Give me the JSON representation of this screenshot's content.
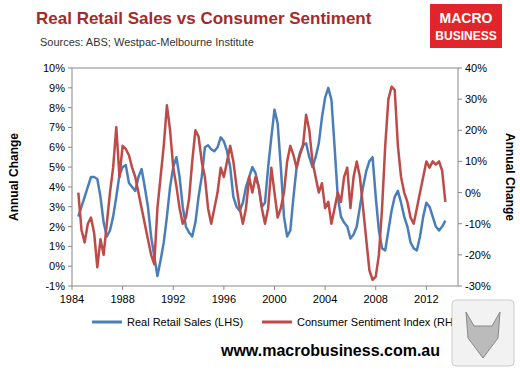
{
  "chart_data": {
    "type": "line",
    "title": "Real Retail Sales vs Consumer Sentiment",
    "subtitle": "Sources: ABS; Westpac-Melbourne Institute",
    "annotations": [
      "MACRO",
      "BUSINESS",
      "www.macrobusiness.com.au"
    ],
    "ylabel": "Annual Change",
    "y2label": "Annual Change",
    "x": [
      1984.5,
      1984.75,
      1985,
      1985.25,
      1985.5,
      1985.75,
      1986,
      1986.25,
      1986.5,
      1986.75,
      1987,
      1987.25,
      1987.5,
      1987.75,
      1988,
      1988.25,
      1988.5,
      1988.75,
      1989,
      1989.25,
      1989.5,
      1989.75,
      1990,
      1990.25,
      1990.5,
      1990.75,
      1991,
      1991.25,
      1991.5,
      1991.75,
      1992,
      1992.25,
      1992.5,
      1992.75,
      1993,
      1993.25,
      1993.5,
      1993.75,
      1994,
      1994.25,
      1994.5,
      1994.75,
      1995,
      1995.25,
      1995.5,
      1995.75,
      1996,
      1996.25,
      1996.5,
      1996.75,
      1997,
      1997.25,
      1997.5,
      1997.75,
      1998,
      1998.25,
      1998.5,
      1998.75,
      1999,
      1999.25,
      1999.5,
      1999.75,
      2000,
      2000.25,
      2000.5,
      2000.75,
      2001,
      2001.25,
      2001.5,
      2001.75,
      2002,
      2002.25,
      2002.5,
      2002.75,
      2003,
      2003.25,
      2003.5,
      2003.75,
      2004,
      2004.25,
      2004.5,
      2004.75,
      2005,
      2005.25,
      2005.5,
      2005.75,
      2006,
      2006.25,
      2006.5,
      2006.75,
      2007,
      2007.25,
      2007.5,
      2007.75,
      2008,
      2008.25,
      2008.5,
      2008.75,
      2009,
      2009.25,
      2009.5,
      2009.75,
      2010,
      2010.25,
      2010.5,
      2010.75,
      2011,
      2011.25,
      2011.5,
      2011.75,
      2012,
      2012.25,
      2012.5,
      2012.75,
      2013,
      2013.25,
      2013.5
    ],
    "series": [
      {
        "name": "Real Retail Sales (LHS)",
        "color": "#4a7ebb",
        "axis": "y",
        "values": [
          2.5,
          3.0,
          3.5,
          4.0,
          4.5,
          4.5,
          4.4,
          3.5,
          2.2,
          1.5,
          1.8,
          2.5,
          3.5,
          4.6,
          5.0,
          5.1,
          4.2,
          4.0,
          3.8,
          4.5,
          4.9,
          4.0,
          3.0,
          1.5,
          0.5,
          -0.5,
          0.3,
          1.2,
          2.5,
          4.0,
          5.0,
          5.5,
          4.5,
          3.0,
          2.0,
          1.7,
          1.5,
          2.2,
          3.5,
          4.5,
          6.0,
          6.1,
          5.9,
          5.8,
          6.0,
          6.5,
          6.3,
          5.8,
          5.0,
          3.5,
          3.0,
          2.8,
          3.2,
          4.0,
          4.5,
          5.0,
          4.7,
          4.0,
          3.0,
          3.2,
          5.0,
          6.5,
          7.9,
          7.2,
          5.0,
          2.5,
          1.5,
          1.8,
          3.5,
          5.0,
          5.7,
          6.1,
          6.2,
          5.5,
          5.0,
          5.5,
          6.2,
          7.5,
          8.5,
          9.0,
          8.4,
          6.0,
          3.5,
          2.5,
          2.2,
          2.0,
          1.4,
          1.6,
          2.0,
          3.0,
          4.0,
          4.8,
          5.3,
          5.5,
          3.5,
          1.8,
          0.9,
          0.8,
          1.8,
          2.8,
          3.5,
          3.8,
          3.2,
          2.5,
          2.0,
          1.2,
          0.9,
          0.8,
          1.5,
          2.5,
          3.2,
          3.0,
          2.5,
          2.0,
          1.8,
          2.0,
          2.3
        ]
      },
      {
        "name": "Consumer Sentiment Index (RHS)",
        "color": "#be4b48",
        "axis": "y2",
        "values": [
          0,
          -12,
          -16,
          -10,
          -8,
          -13,
          -24,
          -15,
          -20,
          -10,
          0,
          8,
          21,
          5,
          15,
          14,
          12,
          8,
          5,
          0,
          -5,
          -10,
          -15,
          -20,
          -23,
          -5,
          5,
          15,
          28,
          20,
          8,
          2,
          -5,
          -10,
          -8,
          -2,
          10,
          20,
          18,
          10,
          5,
          -5,
          -10,
          -5,
          0,
          8,
          5,
          10,
          15,
          10,
          2,
          -5,
          -10,
          -5,
          5,
          0,
          5,
          2,
          -5,
          -10,
          -5,
          8,
          0,
          -8,
          -5,
          0,
          10,
          15,
          12,
          8,
          12,
          15,
          25,
          20,
          10,
          5,
          0,
          3,
          -5,
          -3,
          -10,
          -5,
          0,
          -3,
          5,
          8,
          -5,
          5,
          10,
          5,
          -5,
          -15,
          -25,
          -28,
          -27,
          -20,
          -5,
          15,
          30,
          34,
          33,
          15,
          5,
          0,
          -3,
          -8,
          -10,
          -5,
          0,
          5,
          10,
          8,
          10,
          9,
          10,
          7,
          -3
        ]
      }
    ],
    "xlim": [
      1984,
      2014.5
    ],
    "xticks": [
      1984,
      1988,
      1992,
      1996,
      2000,
      2004,
      2008,
      2012
    ],
    "ylim": [
      -1,
      10
    ],
    "yticks": [
      {
        "value": -1,
        "label": "-1%"
      },
      {
        "value": 0,
        "label": "0%"
      },
      {
        "value": 1,
        "label": "1%"
      },
      {
        "value": 2,
        "label": "2%"
      },
      {
        "value": 3,
        "label": "3%"
      },
      {
        "value": 4,
        "label": "4%"
      },
      {
        "value": 5,
        "label": "5%"
      },
      {
        "value": 6,
        "label": "6%"
      },
      {
        "value": 7,
        "label": "7%"
      },
      {
        "value": 8,
        "label": "8%"
      },
      {
        "value": 9,
        "label": "9%"
      },
      {
        "value": 10,
        "label": "10%"
      }
    ],
    "y2lim": [
      -30,
      40
    ],
    "y2ticks": [
      {
        "value": -30,
        "label": "-30%"
      },
      {
        "value": -20,
        "label": "-20%"
      },
      {
        "value": -10,
        "label": "-10%"
      },
      {
        "value": 0,
        "label": "0%"
      },
      {
        "value": 10,
        "label": "10%"
      },
      {
        "value": 20,
        "label": "20%"
      },
      {
        "value": 30,
        "label": "30%"
      },
      {
        "value": 40,
        "label": "40%"
      }
    ],
    "grid": false,
    "legend": "bottom"
  }
}
